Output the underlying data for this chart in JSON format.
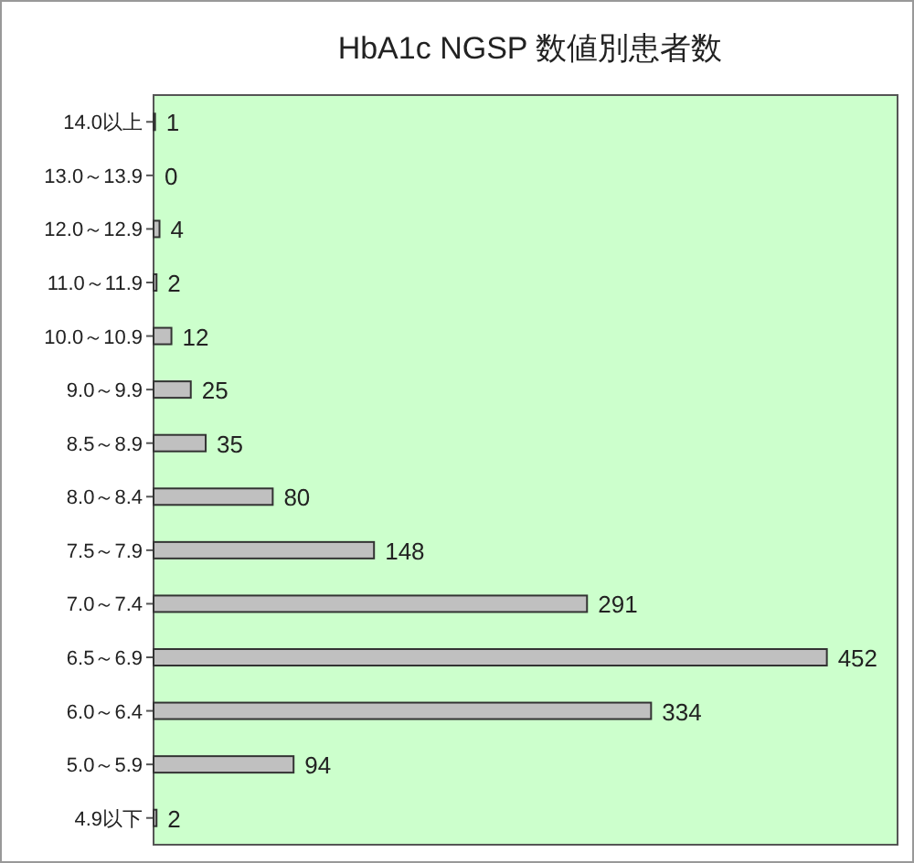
{
  "chart_data": {
    "type": "bar",
    "orientation": "horizontal",
    "title": "HbA1c NGSP 数値別患者数",
    "categories": [
      "14.0以上",
      "13.0～13.9",
      "12.0～12.9",
      "11.0～11.9",
      "10.0～10.9",
      "9.0～9.9",
      "8.5～8.9",
      "8.0～8.4",
      "7.5～7.9",
      "7.0～7.4",
      "6.5～6.9",
      "6.0～6.4",
      "5.0～5.9",
      "4.9以下"
    ],
    "values": [
      1,
      0,
      4,
      2,
      12,
      25,
      35,
      80,
      148,
      291,
      452,
      334,
      94,
      2
    ],
    "color": "#c0c0c0",
    "data_labels": true
  }
}
